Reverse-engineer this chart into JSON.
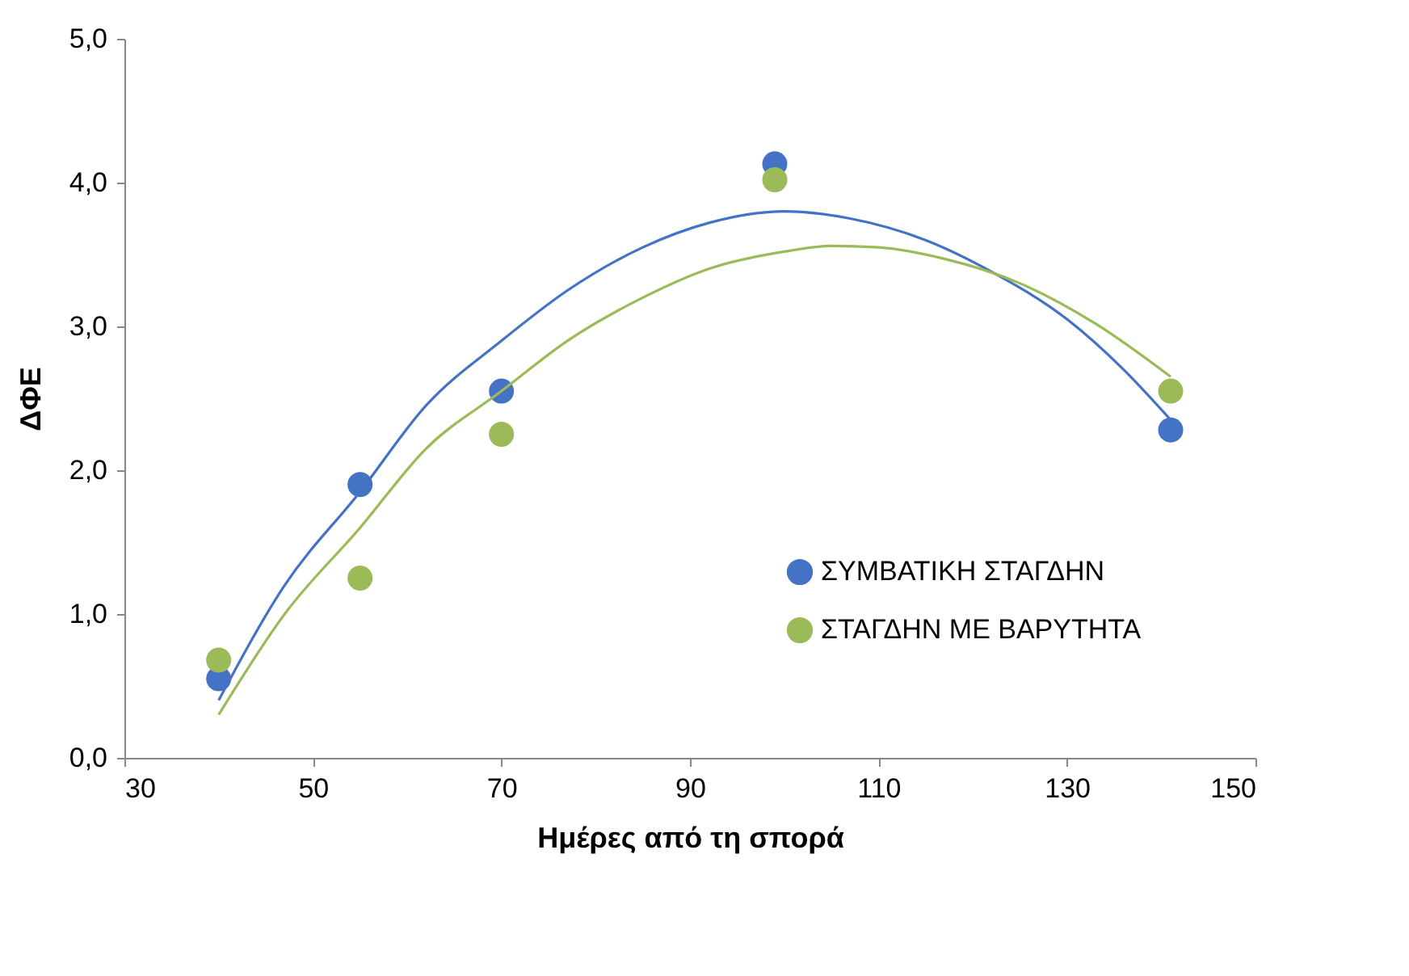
{
  "chart_data": {
    "type": "scatter",
    "xlabel": "Ημέρες από τη σπορά",
    "ylabel": "ΔΦΕ",
    "xlim": [
      30,
      150
    ],
    "xticks": [
      30,
      50,
      70,
      90,
      110,
      130,
      150
    ],
    "ylim": [
      0,
      5
    ],
    "yticks": [
      {
        "value": 0,
        "label": "0,0"
      },
      {
        "value": 1,
        "label": "1,0"
      },
      {
        "value": 2,
        "label": "2,0"
      },
      {
        "value": 3,
        "label": "3,0"
      },
      {
        "value": 4,
        "label": "4,0"
      },
      {
        "value": 5,
        "label": "5,0"
      }
    ],
    "grid": false,
    "legend": "bottom right",
    "marker": "circle",
    "series": [
      {
        "name": "ΣΥΜΒΑΤΙΚΗ ΣΤΑΓΔΗΝ",
        "color": "#4472c4",
        "x": [
          40,
          55,
          70,
          99,
          141
        ],
        "values": [
          0.55,
          1.9,
          2.55,
          4.13,
          2.28
        ]
      },
      {
        "name": "ΣΤΑΓΔΗΝ ΜΕ ΒΑΡΥΤΗΤΑ",
        "color": "#9bbb59",
        "x": [
          40,
          55,
          70,
          99,
          141
        ],
        "values": [
          0.68,
          1.25,
          2.25,
          4.02,
          2.55
        ]
      },
      {
        "type": "line",
        "color": "#4472c4",
        "line_style": "solid",
        "marker": "none",
        "x": [
          40,
          47,
          55,
          62,
          70,
          77,
          85,
          92,
          100,
          107,
          115,
          122,
          130,
          136,
          141
        ],
        "values": [
          0.4,
          1.2,
          1.85,
          2.45,
          2.9,
          3.25,
          3.55,
          3.72,
          3.8,
          3.75,
          3.6,
          3.38,
          3.05,
          2.7,
          2.35
        ]
      },
      {
        "type": "line",
        "color": "#9bbb59",
        "line_style": "solid",
        "marker": "none",
        "x": [
          40,
          47,
          55,
          62,
          70,
          77,
          85,
          92,
          100,
          105,
          110,
          117,
          125,
          133,
          141
        ],
        "values": [
          0.3,
          1.0,
          1.6,
          2.15,
          2.55,
          2.9,
          3.2,
          3.4,
          3.52,
          3.56,
          3.55,
          3.47,
          3.3,
          3.02,
          2.65
        ]
      }
    ]
  }
}
